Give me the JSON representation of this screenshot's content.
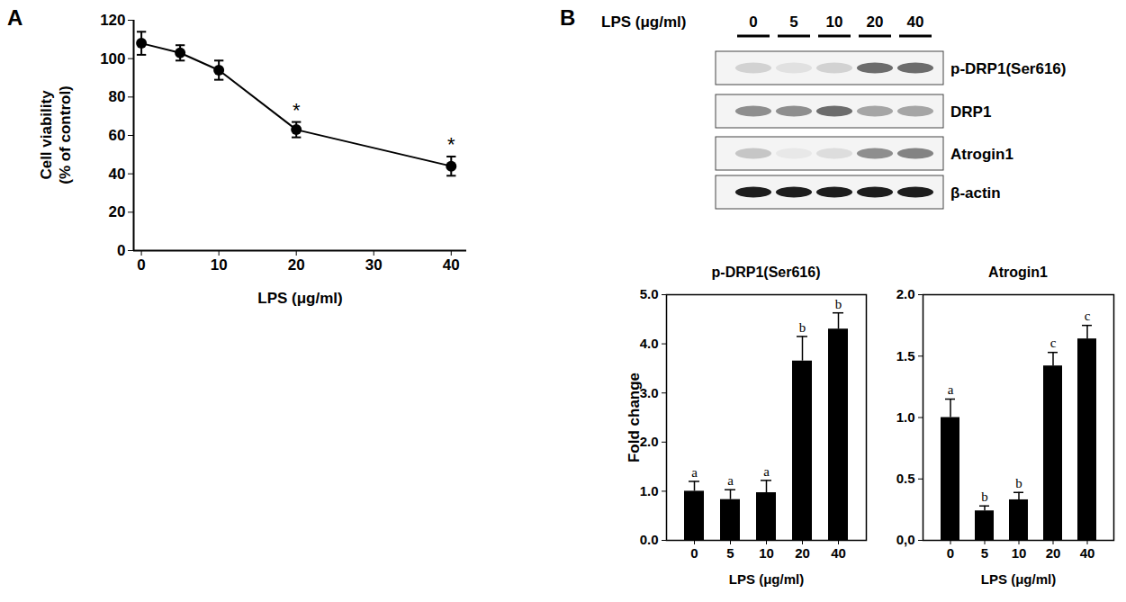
{
  "panel_labels": [
    "A",
    "B"
  ],
  "blot": {
    "header": "LPS (μg/ml)",
    "lanes": [
      "0",
      "5",
      "10",
      "20",
      "40"
    ],
    "rows": [
      {
        "name": "p-DRP1(Ser616)",
        "intensity": [
          0.15,
          0.08,
          0.15,
          0.6,
          0.6
        ]
      },
      {
        "name": "DRP1",
        "intensity": [
          0.45,
          0.45,
          0.6,
          0.35,
          0.35
        ]
      },
      {
        "name": "Atrogin1",
        "intensity": [
          0.2,
          0.05,
          0.1,
          0.45,
          0.5
        ]
      },
      {
        "name": "β-actin",
        "intensity": [
          0.95,
          0.95,
          0.95,
          0.95,
          0.95
        ]
      }
    ]
  },
  "chart_data": [
    {
      "type": "line",
      "xlabel": "LPS (μg/ml)",
      "ylabel": "Cell viability\n(% of control)",
      "x": [
        0,
        5,
        10,
        20,
        40
      ],
      "values": [
        108,
        103,
        94,
        63,
        44
      ],
      "errors": [
        6,
        4,
        5,
        4,
        5
      ],
      "labels": [
        null,
        null,
        null,
        "*",
        "*"
      ],
      "color": "#000000",
      "marker": "circle",
      "xlim": [
        -1,
        42
      ],
      "xticks": [
        0,
        10,
        20,
        30,
        40
      ],
      "ylim": [
        0,
        120
      ],
      "yticks": [
        0,
        20,
        40,
        60,
        80,
        100,
        120
      ]
    },
    {
      "type": "bar",
      "title": "p-DRP1(Ser616)",
      "xlabel": "LPS (μg/ml)",
      "ylabel": "Fold change",
      "categories": [
        "0",
        "5",
        "10",
        "20",
        "40"
      ],
      "values": [
        1.0,
        0.83,
        0.97,
        3.65,
        4.3
      ],
      "errors": [
        0.2,
        0.2,
        0.25,
        0.5,
        0.33
      ],
      "letters": [
        "a",
        "a",
        "a",
        "b",
        "b"
      ],
      "color": "#000000",
      "ylim": [
        0,
        5
      ],
      "yticks": [
        {
          "value": 0,
          "label": "0.0"
        },
        {
          "value": 1,
          "label": "1.0"
        },
        {
          "value": 2,
          "label": "2.0"
        },
        {
          "value": 3,
          "label": "3.0"
        },
        {
          "value": 4,
          "label": "4.0"
        },
        {
          "value": 5,
          "label": "5.0"
        }
      ]
    },
    {
      "type": "bar",
      "title": "Atrogin1",
      "xlabel": "LPS (μg/ml)",
      "categories": [
        "0",
        "5",
        "10",
        "20",
        "40"
      ],
      "values": [
        1.0,
        0.24,
        0.33,
        1.42,
        1.64
      ],
      "errors": [
        0.15,
        0.04,
        0.06,
        0.11,
        0.11
      ],
      "letters": [
        "a",
        "b",
        "b",
        "c",
        "c"
      ],
      "color": "#000000",
      "ylim": [
        0,
        2
      ],
      "yticks": [
        {
          "value": 0,
          "label": "0,0"
        },
        {
          "value": 0.5,
          "label": "0.5"
        },
        {
          "value": 1,
          "label": "1.0"
        },
        {
          "value": 1.5,
          "label": "1.5"
        },
        {
          "value": 2,
          "label": "2.0"
        }
      ]
    }
  ]
}
